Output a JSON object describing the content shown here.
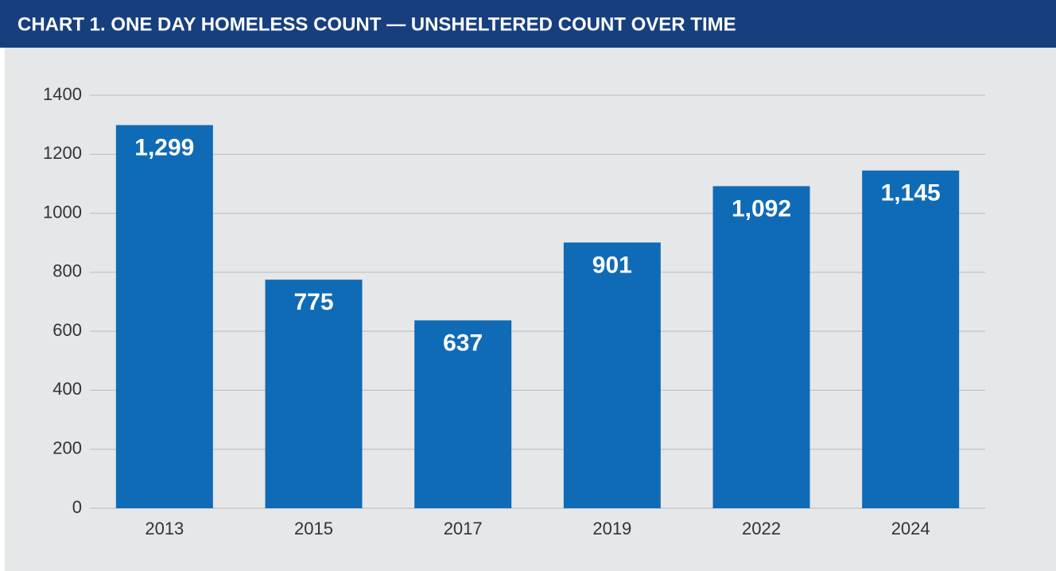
{
  "chart_data": {
    "type": "bar",
    "title": "CHART 1. ONE DAY HOMELESS COUNT — UNSHELTERED COUNT OVER TIME",
    "categories": [
      "2013",
      "2015",
      "2017",
      "2019",
      "2022",
      "2024"
    ],
    "values": [
      1299,
      775,
      637,
      901,
      1092,
      1145
    ],
    "value_labels": [
      "1,299",
      "775",
      "637",
      "901",
      "1,092",
      "1,145"
    ],
    "color": "#0f6bb6",
    "ylim": [
      0,
      1400
    ],
    "yticks": [
      0,
      200,
      400,
      600,
      800,
      1000,
      1200,
      1400
    ],
    "grid": true
  }
}
